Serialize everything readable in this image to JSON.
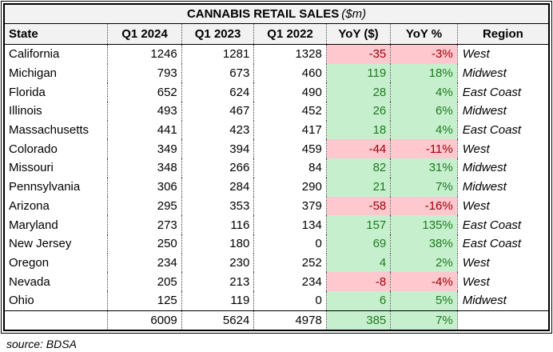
{
  "title": {
    "main": "CANNABIS RETAIL SALES",
    "unit": "($m)"
  },
  "columns": [
    "State",
    "Q1 2024",
    "Q1 2023",
    "Q1 2022",
    "YoY ($)",
    "YoY %",
    "Region"
  ],
  "rows": [
    {
      "state": "California",
      "q1_2024": "1246",
      "q1_2023": "1281",
      "q1_2022": "1328",
      "yoy_dollar": "-35",
      "yoy_pct": "-3%",
      "region": "West",
      "trend": "down"
    },
    {
      "state": "Michigan",
      "q1_2024": "793",
      "q1_2023": "673",
      "q1_2022": "460",
      "yoy_dollar": "119",
      "yoy_pct": "18%",
      "region": "Midwest",
      "trend": "up"
    },
    {
      "state": "Florida",
      "q1_2024": "652",
      "q1_2023": "624",
      "q1_2022": "490",
      "yoy_dollar": "28",
      "yoy_pct": "4%",
      "region": "East Coast",
      "trend": "up"
    },
    {
      "state": "Illinois",
      "q1_2024": "493",
      "q1_2023": "467",
      "q1_2022": "452",
      "yoy_dollar": "26",
      "yoy_pct": "6%",
      "region": "Midwest",
      "trend": "up"
    },
    {
      "state": "Massachusetts",
      "q1_2024": "441",
      "q1_2023": "423",
      "q1_2022": "417",
      "yoy_dollar": "18",
      "yoy_pct": "4%",
      "region": "East Coast",
      "trend": "up"
    },
    {
      "state": "Colorado",
      "q1_2024": "349",
      "q1_2023": "394",
      "q1_2022": "459",
      "yoy_dollar": "-44",
      "yoy_pct": "-11%",
      "region": "West",
      "trend": "down"
    },
    {
      "state": "Missouri",
      "q1_2024": "348",
      "q1_2023": "266",
      "q1_2022": "84",
      "yoy_dollar": "82",
      "yoy_pct": "31%",
      "region": "Midwest",
      "trend": "up"
    },
    {
      "state": "Pennsylvania",
      "q1_2024": "306",
      "q1_2023": "284",
      "q1_2022": "290",
      "yoy_dollar": "21",
      "yoy_pct": "7%",
      "region": "Midwest",
      "trend": "up"
    },
    {
      "state": "Arizona",
      "q1_2024": "295",
      "q1_2023": "353",
      "q1_2022": "379",
      "yoy_dollar": "-58",
      "yoy_pct": "-16%",
      "region": "West",
      "trend": "down"
    },
    {
      "state": "Maryland",
      "q1_2024": "273",
      "q1_2023": "116",
      "q1_2022": "134",
      "yoy_dollar": "157",
      "yoy_pct": "135%",
      "region": "East Coast",
      "trend": "up"
    },
    {
      "state": "New Jersey",
      "q1_2024": "250",
      "q1_2023": "180",
      "q1_2022": "0",
      "yoy_dollar": "69",
      "yoy_pct": "38%",
      "region": "East Coast",
      "trend": "up"
    },
    {
      "state": "Oregon",
      "q1_2024": "234",
      "q1_2023": "230",
      "q1_2022": "252",
      "yoy_dollar": "4",
      "yoy_pct": "2%",
      "region": "West",
      "trend": "up"
    },
    {
      "state": "Nevada",
      "q1_2024": "205",
      "q1_2023": "213",
      "q1_2022": "234",
      "yoy_dollar": "-8",
      "yoy_pct": "-4%",
      "region": "West",
      "trend": "down"
    },
    {
      "state": "Ohio",
      "q1_2024": "125",
      "q1_2023": "119",
      "q1_2022": "0",
      "yoy_dollar": "6",
      "yoy_pct": "5%",
      "region": "Midwest",
      "trend": "up"
    }
  ],
  "total": {
    "q1_2024": "6009",
    "q1_2023": "5624",
    "q1_2022": "4978",
    "yoy_dollar": "385",
    "yoy_pct": "7%",
    "trend": "up"
  },
  "footer": {
    "source": "source: BDSA"
  },
  "colors": {
    "positive_fill": "#C6EFCE",
    "positive_text": "#1E7A1E",
    "negative_fill": "#FFC7CE",
    "negative_text": "#9C0006",
    "header_fill": "#F2F2F2"
  }
}
